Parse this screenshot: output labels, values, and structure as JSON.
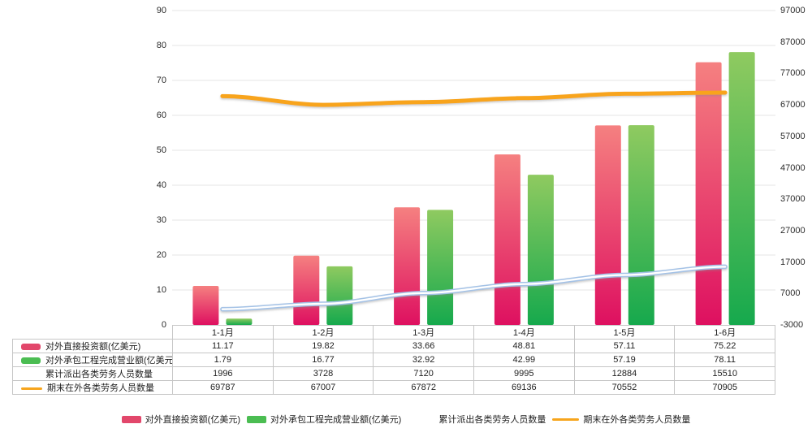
{
  "chart_data": {
    "type": "combo",
    "title": "",
    "categories": [
      "1-1月",
      "1-2月",
      "1-3月",
      "1-4月",
      "1-5月",
      "1-6月"
    ],
    "series": [
      {
        "name": "对外直接投资额(亿美元)",
        "type": "bar",
        "axis": "left",
        "values": [
          11.17,
          19.82,
          33.66,
          48.81,
          57.11,
          75.22
        ],
        "color_top": "#f58080",
        "color_bottom": "#de1060",
        "swatch_color": "#e2476b"
      },
      {
        "name": "对外承包工程完成营业额(亿美元)",
        "type": "bar",
        "axis": "left",
        "values": [
          1.79,
          16.77,
          32.92,
          42.99,
          57.19,
          78.11
        ],
        "color_top": "#8fca60",
        "color_bottom": "#16a94d",
        "swatch_color": "#4bbd52"
      },
      {
        "name": "累计派出各类劳务人员数量",
        "type": "line",
        "axis": "right",
        "values": [
          1996,
          3728,
          7120,
          9995,
          12884,
          15510
        ],
        "color": "#a4c2e6",
        "core_color": "#ffffff",
        "swatch_color": "transparent"
      },
      {
        "name": "期末在外各类劳务人员数量",
        "type": "line",
        "axis": "right",
        "values": [
          69787,
          67007,
          67872,
          69136,
          70552,
          70905
        ],
        "color": "#f8a41d",
        "swatch_color": "#f7a51d"
      }
    ],
    "left_axis": {
      "min": 0,
      "max": 90,
      "ticks": [
        90,
        80,
        70,
        60,
        50,
        40,
        30,
        20,
        10,
        0
      ]
    },
    "right_axis": {
      "min": -3000,
      "max": 97000,
      "ticks": [
        97000,
        87000,
        77000,
        67000,
        57000,
        47000,
        37000,
        27000,
        17000,
        7000,
        -3000
      ]
    },
    "grid": true,
    "gridline_color": "#e4e4e4",
    "legend_position": "bottom"
  }
}
